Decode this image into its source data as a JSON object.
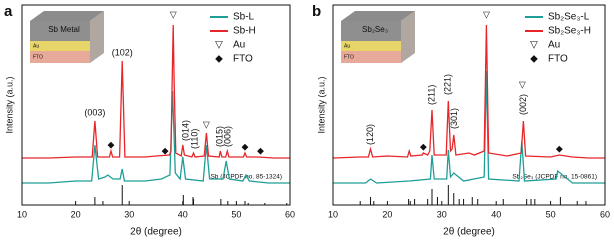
{
  "chart_data": [
    {
      "type": "line",
      "panel": "a",
      "xlabel": "2θ (degree)",
      "ylabel": "Intensity (a.u.)",
      "xlim": [
        10,
        60
      ],
      "xticks": [
        10,
        20,
        30,
        40,
        50,
        60
      ],
      "ylim": [
        0,
        100
      ],
      "inset": {
        "title": "Sb Metal",
        "layers": [
          "Au",
          "FTO"
        ]
      },
      "series": [
        {
          "name": "Sb-L",
          "color": "#1f9e98",
          "x": [
            10,
            15,
            20,
            23.0,
            23.6,
            24.3,
            25.5,
            26,
            27,
            28.3,
            28.7,
            29.1,
            33,
            36,
            37.6,
            38.1,
            38.6,
            39.5,
            40.0,
            40.5,
            43.8,
            44.4,
            45.0,
            47.5,
            48.1,
            48.7,
            51.2,
            51.8,
            52.4,
            56,
            60
          ],
          "values": [
            11,
            11,
            12,
            12,
            30,
            13,
            14,
            15,
            13,
            13,
            18,
            12,
            12,
            13,
            15,
            57,
            16,
            13,
            24,
            13,
            12,
            30,
            13,
            13,
            22,
            13,
            12,
            15,
            12,
            11,
            11
          ]
        },
        {
          "name": "Sb-H",
          "color": "#e8262a",
          "x": [
            10,
            15,
            20,
            23.1,
            23.6,
            24.1,
            26.3,
            26.6,
            26.9,
            28.2,
            28.7,
            29.2,
            33,
            35,
            37.5,
            37.8,
            38.0,
            38.2,
            38.4,
            38.7,
            39.7,
            40.0,
            40.3,
            41.7,
            42.0,
            42.3,
            44.0,
            44.4,
            44.8,
            46.8,
            47.0,
            47.3,
            48.0,
            48.3,
            48.6,
            51.3,
            51.6,
            51.9,
            54,
            57,
            60
          ],
          "values": [
            23.5,
            23.5,
            24,
            24,
            42,
            24,
            24,
            27,
            24,
            24,
            72,
            24,
            24,
            24.5,
            25,
            27,
            60,
            90,
            60,
            26,
            24.5,
            30,
            25,
            24,
            26,
            24,
            24.5,
            36,
            24.5,
            24,
            27,
            24,
            24,
            27,
            24,
            24,
            26,
            24,
            24,
            23.5,
            23.5
          ]
        }
      ],
      "legend_markers": [
        {
          "symbol": "▽",
          "label": "Au"
        },
        {
          "symbol": "◆",
          "label": "FTO"
        }
      ],
      "reference": {
        "name": "Sb (JCPDF no. 85-1324)",
        "x": [
          23.6,
          25.1,
          28.7,
          40.1,
          41.9,
          42.0,
          47.1,
          48.4,
          51.6,
          52.2,
          55.3,
          59.4
        ],
        "values": [
          4,
          2,
          10,
          5,
          4,
          3,
          3,
          2,
          2,
          1,
          1,
          1
        ]
      },
      "annotations": [
        {
          "text": "(003)",
          "x": 23.6,
          "y": 46
        },
        {
          "text": "(102)",
          "x": 28.7,
          "y": 76
        },
        {
          "text": "(014)",
          "x": 40.6,
          "y": 32,
          "vertical": true
        },
        {
          "text": "(110)",
          "x": 42.3,
          "y": 28,
          "vertical": true
        },
        {
          "text": "(015)",
          "x": 47.0,
          "y": 29,
          "vertical": true
        },
        {
          "text": "(006)",
          "x": 48.5,
          "y": 29,
          "vertical": true
        },
        {
          "text": "▽",
          "x": 38.2,
          "y": 95
        },
        {
          "text": "▽",
          "x": 44.4,
          "y": 40
        },
        {
          "text": "◆",
          "x": 26.6,
          "y": 30
        },
        {
          "text": "◆",
          "x": 36.7,
          "y": 27
        },
        {
          "text": "◆",
          "x": 51.6,
          "y": 29
        },
        {
          "text": "◆",
          "x": 54.5,
          "y": 27
        }
      ]
    },
    {
      "type": "line",
      "panel": "b",
      "xlabel": "2θ (degree)",
      "ylabel": "Intensity (a.u.)",
      "xlim": [
        10,
        60
      ],
      "xticks": [
        10,
        20,
        30,
        40,
        50,
        60
      ],
      "ylim": [
        0,
        100
      ],
      "inset": {
        "title": "Sb₂Se₃",
        "layers": [
          "Au",
          "FTO"
        ]
      },
      "series": [
        {
          "name": "Sb₂Se₃-L",
          "color": "#1f9e98",
          "x": [
            10,
            16,
            16.9,
            18,
            24,
            27.9,
            28.2,
            28.6,
            30.9,
            31.2,
            31.6,
            32.2,
            34,
            37.8,
            38.2,
            38.6,
            44.2,
            44.7,
            45.2,
            51,
            51.3,
            54,
            60
          ],
          "values": [
            11,
            11,
            13,
            11,
            12,
            13,
            25,
            13,
            13,
            27.5,
            14,
            16,
            12,
            14,
            67,
            13,
            12,
            32,
            12,
            13,
            17,
            11,
            11
          ]
        },
        {
          "name": "Sb₂Se₃-H",
          "color": "#e8262a",
          "x": [
            10,
            15,
            16.5,
            16.9,
            17.3,
            20,
            23.7,
            24,
            24.3,
            26.4,
            26.6,
            27.4,
            27.8,
            28.2,
            28.6,
            30.8,
            31.2,
            31.6,
            31.9,
            32.2,
            32.6,
            35,
            36,
            37.8,
            38.2,
            38.6,
            42,
            44.6,
            45.0,
            45.4,
            50,
            51.6,
            54,
            57,
            60
          ],
          "values": [
            23.5,
            24,
            24,
            28,
            24,
            24.5,
            24,
            27,
            24.5,
            25,
            26,
            25,
            27,
            47.5,
            25,
            25,
            52,
            27,
            28,
            35,
            25,
            26,
            25,
            27,
            90,
            26,
            24.5,
            26,
            42,
            24.5,
            24,
            25,
            24,
            23.5,
            23.5
          ]
        }
      ],
      "legend_markers": [
        {
          "symbol": "▽",
          "label": "Au"
        },
        {
          "symbol": "◆",
          "label": "FTO"
        }
      ],
      "reference": {
        "name": "Sb₂Se₃ (JCPDF no. 15-0861)",
        "x": [
          15.0,
          16.9,
          17.5,
          23.9,
          24.2,
          25.0,
          27.4,
          28.2,
          29.2,
          31.2,
          32.2,
          33.2,
          34.0,
          35.6,
          36.6,
          41.3,
          45.6,
          46.4,
          47.1,
          51.8,
          54.9,
          56.5
        ],
        "values": [
          2,
          4,
          2,
          3,
          2,
          3,
          3,
          8,
          4,
          10,
          6,
          3,
          3,
          4,
          3,
          3,
          3,
          3,
          3,
          4,
          2,
          2
        ]
      },
      "annotations": [
        {
          "text": "(120)",
          "x": 16.9,
          "y": 30,
          "vertical": true
        },
        {
          "text": "(211)",
          "x": 28.2,
          "y": 50,
          "vertical": true
        },
        {
          "text": "(221)",
          "x": 31.2,
          "y": 55,
          "vertical": true
        },
        {
          "text": "(301)",
          "x": 32.4,
          "y": 38,
          "vertical": true
        },
        {
          "text": "(002)",
          "x": 45.0,
          "y": 45,
          "vertical": true
        },
        {
          "text": "▽",
          "x": 38.2,
          "y": 95
        },
        {
          "text": "▽",
          "x": 44.8,
          "y": 60
        },
        {
          "text": "◆",
          "x": 26.6,
          "y": 29
        },
        {
          "text": "◆",
          "x": 51.6,
          "y": 28
        }
      ]
    }
  ]
}
